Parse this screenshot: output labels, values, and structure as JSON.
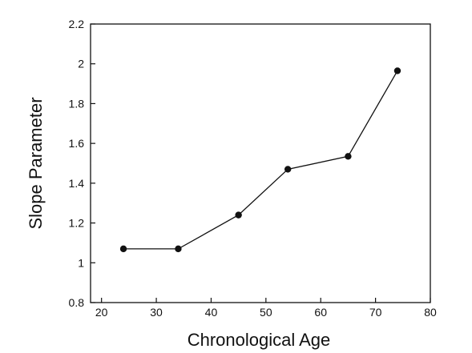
{
  "chart_data": {
    "type": "line",
    "xlabel": "Chronological Age",
    "ylabel": "Slope Parameter",
    "xlim": [
      18,
      80
    ],
    "ylim": [
      0.8,
      2.2
    ],
    "xticks": [
      20,
      30,
      40,
      50,
      60,
      70,
      80
    ],
    "yticks": [
      0.8,
      1,
      1.2,
      1.4,
      1.6,
      1.8,
      2,
      2.2
    ],
    "xtick_labels": [
      "20",
      "30",
      "40",
      "50",
      "60",
      "70",
      "80"
    ],
    "ytick_labels": [
      "0.8",
      "1",
      "1.2",
      "1.4",
      "1.6",
      "1.8",
      "2",
      "2.2"
    ],
    "grid": false,
    "series": [
      {
        "x": [
          24,
          34,
          45,
          54,
          65,
          74
        ],
        "y": [
          1.07,
          1.07,
          1.24,
          1.47,
          1.535,
          1.965
        ],
        "color": "#111111",
        "marker": "circle"
      }
    ]
  }
}
